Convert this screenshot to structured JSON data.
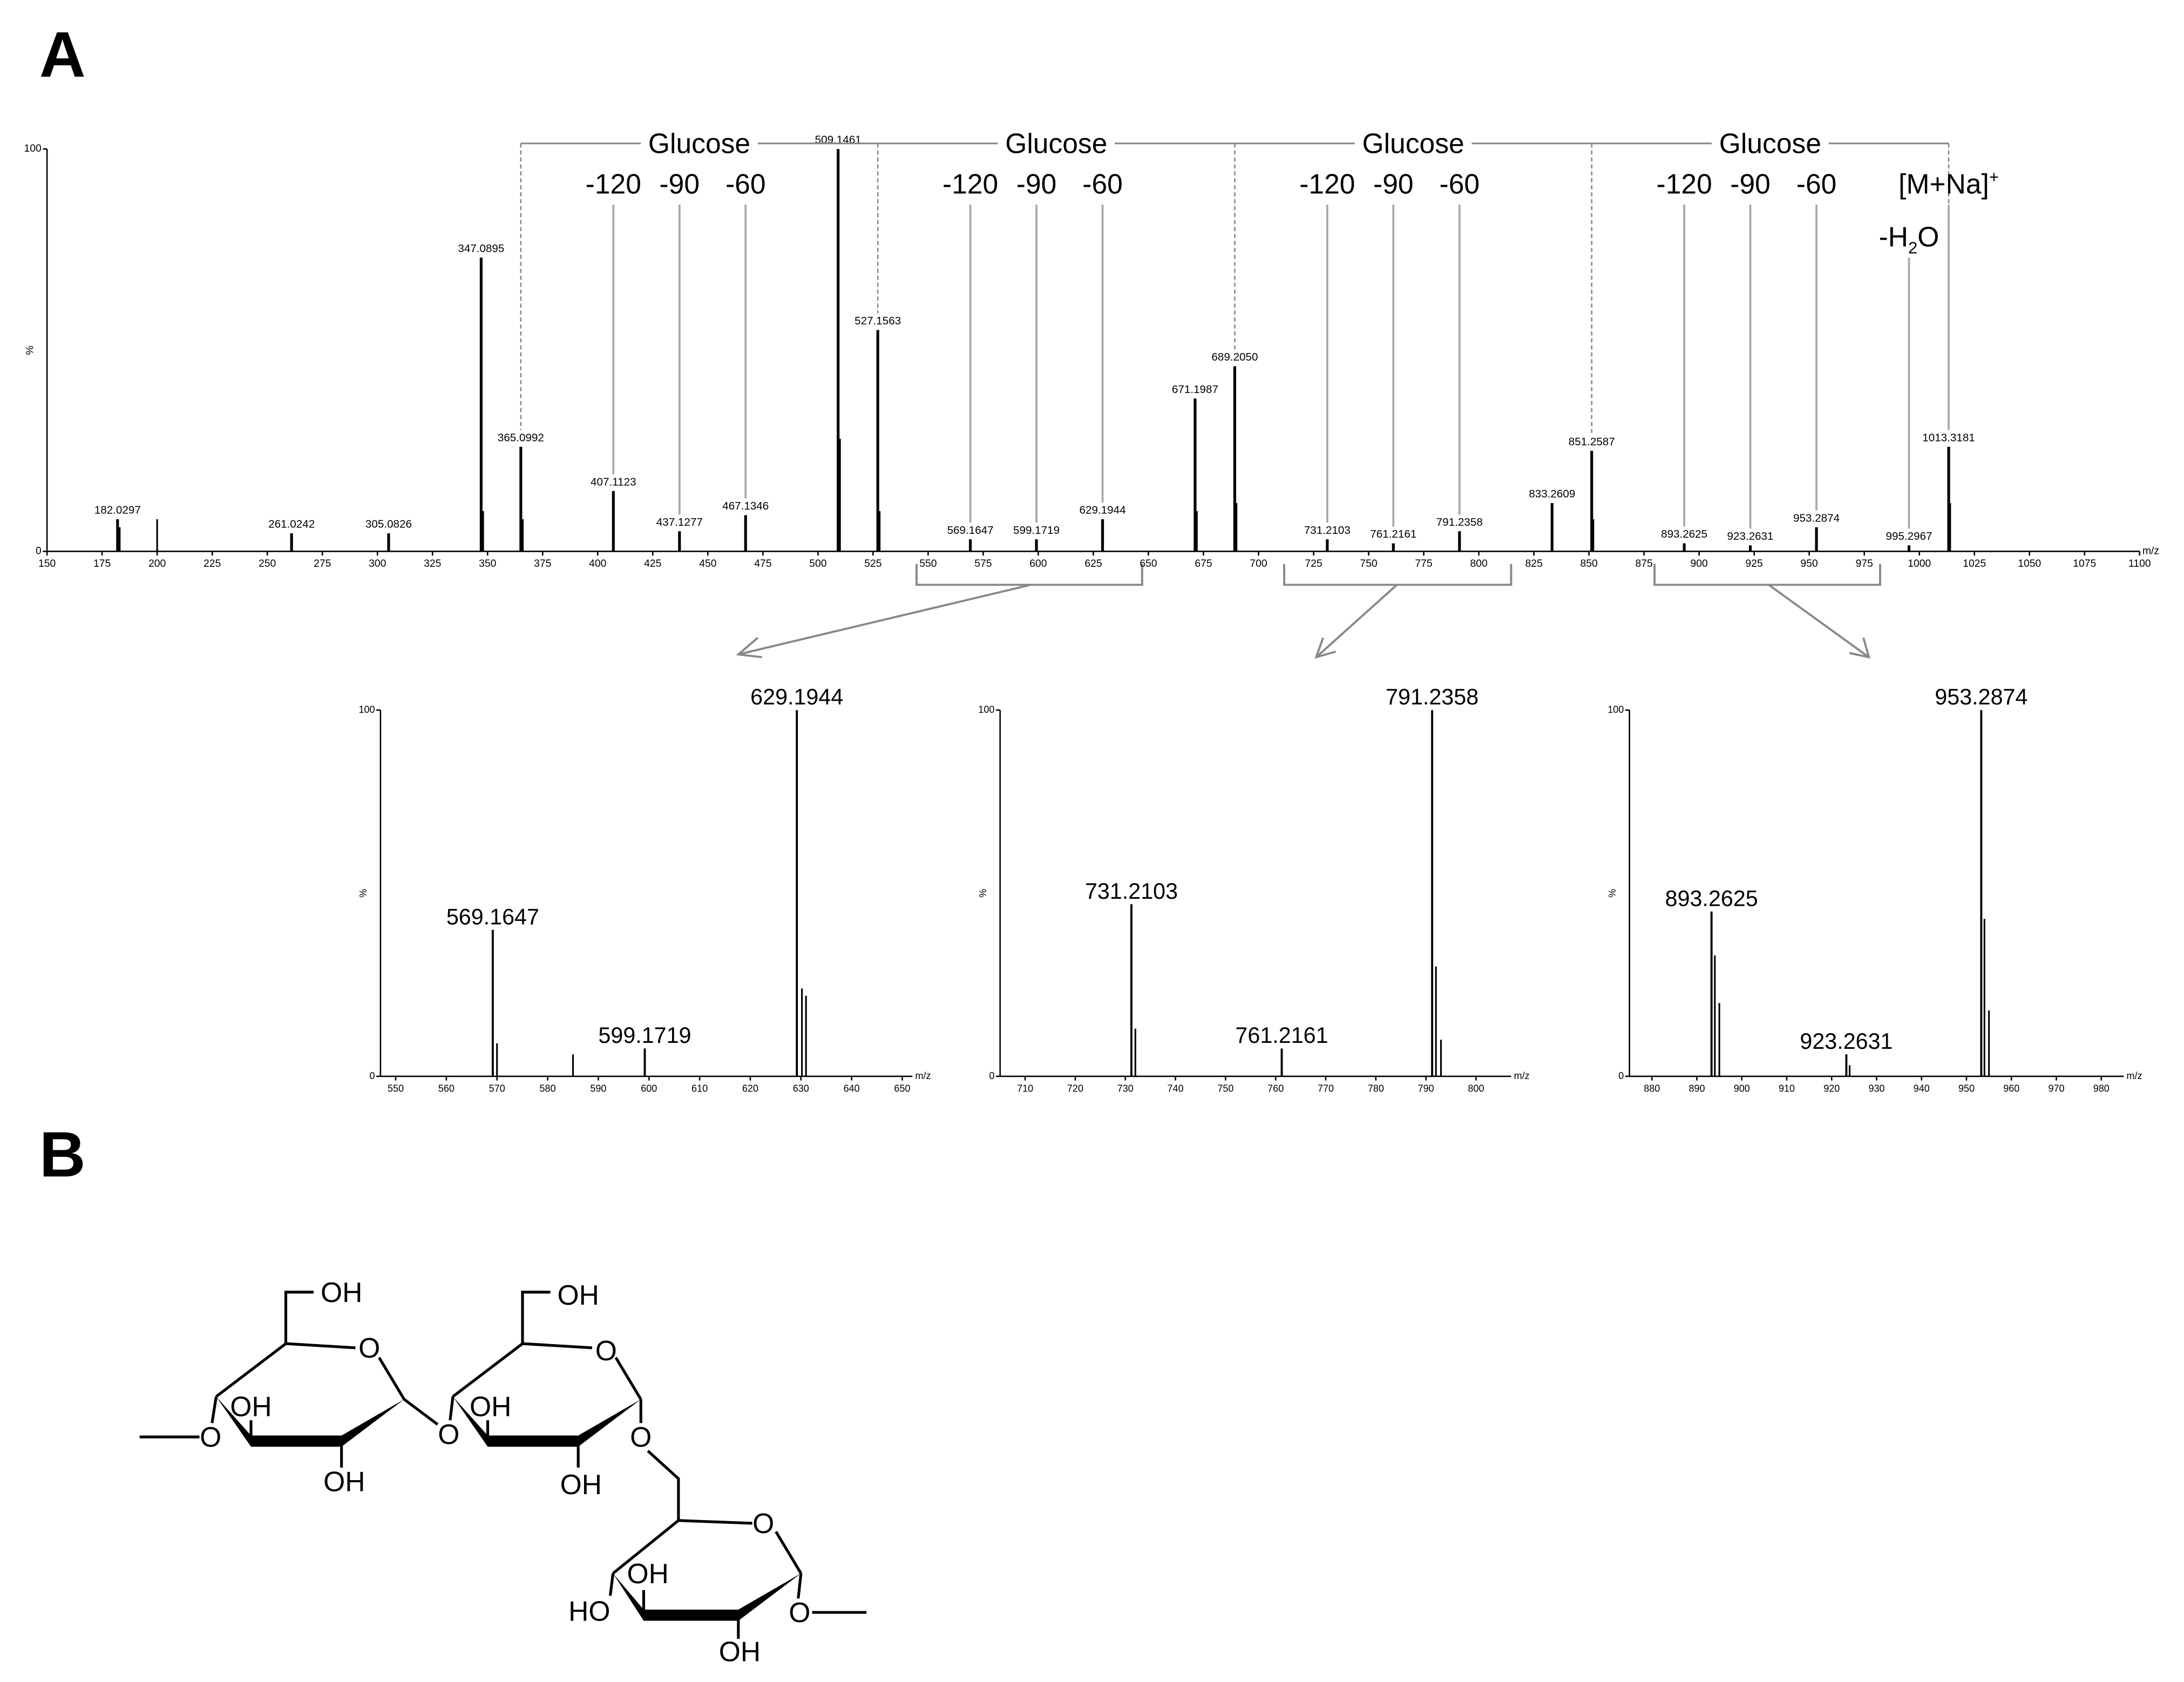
{
  "panel_labels": [
    "A",
    "B"
  ],
  "chart_data": [
    {
      "type": "bar",
      "x_label": "m/z",
      "y_label": "%",
      "color": "#000000",
      "xlim": [
        150,
        1100
      ],
      "xticks": [
        150,
        175,
        200,
        225,
        250,
        275,
        300,
        325,
        350,
        375,
        400,
        425,
        450,
        475,
        500,
        525,
        550,
        575,
        600,
        625,
        650,
        675,
        700,
        725,
        750,
        775,
        800,
        825,
        850,
        875,
        900,
        925,
        950,
        975,
        1000,
        1025,
        1050,
        1075,
        1100
      ],
      "ylim": [
        0,
        100
      ],
      "yticks": [
        0,
        100
      ],
      "x": [
        182.0297,
        261.0242,
        305.0826,
        347.0895,
        365.0992,
        407.1123,
        437.1277,
        467.1346,
        509.1461,
        527.1563,
        569.1647,
        599.1719,
        629.1944,
        671.1987,
        689.205,
        731.2103,
        761.2161,
        791.2358,
        833.2609,
        851.2587,
        893.2625,
        923.2631,
        953.2874,
        995.2967,
        1013.3181
      ],
      "x_labels": [
        "182.0297",
        "261.0242",
        "305.0826",
        "347.0895",
        "365.0992",
        "407.1123",
        "437.1277",
        "467.1346",
        "509.1461",
        "527.1563",
        "569.1647",
        "599.1719",
        "629.1944",
        "671.1987",
        "689.2050",
        "731.2103",
        "761.2161",
        "791.2358",
        "833.2609",
        "851.2587",
        "893.2625",
        "923.2631",
        "953.2874",
        "995.2967",
        "1013.3181"
      ],
      "values": [
        8,
        4.5,
        4.5,
        73,
        26,
        15,
        5,
        9,
        100,
        55,
        3,
        3,
        8,
        38,
        46,
        3,
        2,
        5,
        12,
        25,
        2,
        1.5,
        6,
        1.5,
        26
      ],
      "minor_x": [
        183,
        200,
        348,
        366,
        510,
        528,
        672,
        690,
        852,
        1014
      ],
      "minor_values": [
        6,
        8,
        10,
        8,
        28,
        10,
        10,
        12,
        8,
        12
      ]
    },
    {
      "type": "bar",
      "x_label": "m/z",
      "y_label": "%",
      "color": "#000000",
      "xlim": [
        547,
        652
      ],
      "xticks": [
        550,
        560,
        570,
        580,
        590,
        600,
        610,
        620,
        630,
        640,
        650
      ],
      "ylim": [
        0,
        100
      ],
      "yticks": [
        0,
        100
      ],
      "x": [
        569.1647,
        599.1719,
        629.1944
      ],
      "x_labels": [
        "569.1647",
        "599.1719",
        "629.1944"
      ],
      "values": [
        40,
        7.6,
        100
      ],
      "minor_x": [
        570,
        585,
        630.2,
        631
      ],
      "minor_values": [
        9,
        6,
        24,
        22
      ]
    },
    {
      "type": "bar",
      "x_label": "m/z",
      "y_label": "%",
      "color": "#000000",
      "xlim": [
        705,
        807
      ],
      "xticks": [
        710,
        720,
        730,
        740,
        750,
        760,
        770,
        780,
        790,
        800
      ],
      "ylim": [
        0,
        100
      ],
      "yticks": [
        0,
        100
      ],
      "x": [
        731.2103,
        761.2161,
        791.2358
      ],
      "x_labels": [
        "731.2103",
        "761.2161",
        "791.2358"
      ],
      "values": [
        47,
        7.6,
        100
      ],
      "minor_x": [
        732,
        792,
        793
      ],
      "minor_values": [
        13,
        30,
        10
      ]
    },
    {
      "type": "bar",
      "x_label": "m/z",
      "y_label": "%",
      "color": "#000000",
      "xlim": [
        875,
        985
      ],
      "xticks": [
        880,
        890,
        900,
        910,
        920,
        930,
        940,
        950,
        960,
        970,
        980
      ],
      "ylim": [
        0,
        100
      ],
      "yticks": [
        0,
        100
      ],
      "x": [
        893.2625,
        923.2631,
        953.2874
      ],
      "x_labels": [
        "893.2625",
        "923.2631",
        "953.2874"
      ],
      "values": [
        45,
        6,
        100
      ],
      "minor_x": [
        894,
        895,
        924,
        954,
        955
      ],
      "minor_values": [
        33,
        20,
        3,
        43,
        18
      ]
    }
  ],
  "annotations": {
    "glucose": [
      "Glucose",
      "Glucose",
      "Glucose",
      "Glucose"
    ],
    "losses": [
      [
        "-120",
        "-90",
        "-60"
      ],
      [
        "-120",
        "-90",
        "-60"
      ],
      [
        "-120",
        "-90",
        "-60"
      ],
      [
        "-120",
        "-90",
        "-60"
      ]
    ],
    "molecular_ion": {
      "text": "[M+Na]",
      "charge": "+"
    },
    "water_loss": [
      "-H",
      "2",
      "O"
    ]
  },
  "structure": {
    "labels": [
      "OH",
      "O",
      "OH",
      "O",
      "OH",
      "O",
      "OH",
      "O",
      "OH",
      "OH",
      "O",
      "O",
      "OH",
      "HO",
      "O",
      "OH"
    ]
  }
}
